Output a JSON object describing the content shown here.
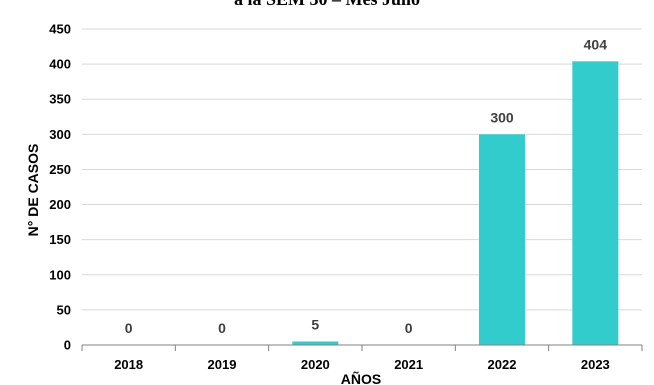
{
  "chart_data": {
    "type": "bar",
    "title": "a la SEM 30 – Mes Julio",
    "xlabel": "AÑOS",
    "ylabel": "N° DE CASOS",
    "categories": [
      "2018",
      "2019",
      "2020",
      "2021",
      "2022",
      "2023"
    ],
    "values": [
      0,
      0,
      5,
      0,
      300,
      404
    ],
    "data_labels": [
      "0",
      "0",
      "5",
      "0",
      "300",
      "404"
    ],
    "ylim": [
      0,
      450
    ],
    "yticks": [
      "0",
      "50",
      "100",
      "150",
      "200",
      "250",
      "300",
      "350",
      "400",
      "450"
    ],
    "grid": true,
    "legend": "none",
    "bar_color": "#33CCCC",
    "grid_color": "#D9D9D9"
  }
}
